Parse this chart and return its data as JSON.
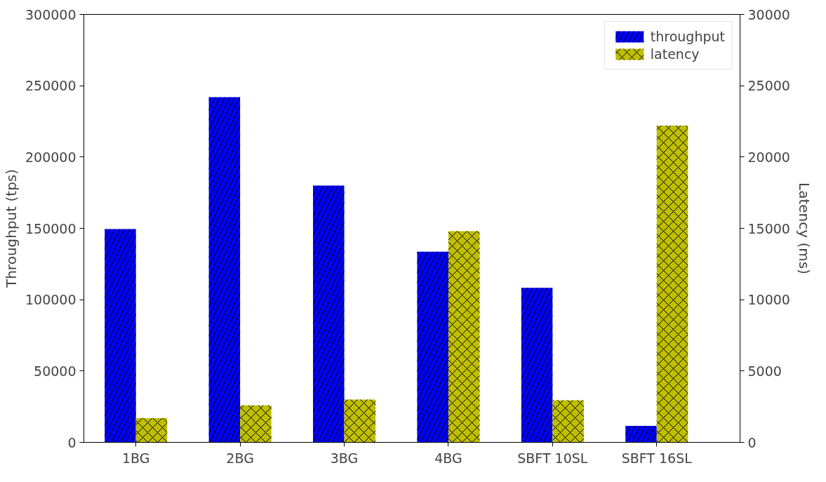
{
  "chart_data": {
    "type": "bar",
    "ylabel": "Throughput (tps)",
    "y2label": "Latency (ms)",
    "categories": [
      "1BG",
      "2BG",
      "3BG",
      "4BG",
      "SBFT 10SL",
      "SBFT 16SL"
    ],
    "series": [
      {
        "name": "throughput",
        "color": "#0000ff",
        "values": [
          149500,
          242000,
          180000,
          133700,
          108300,
          11500
        ]
      },
      {
        "name": "latency",
        "color": "#bfbf00",
        "axis": "y2",
        "values": [
          1700,
          2600,
          3000,
          14800,
          2950,
          22200
        ]
      }
    ],
    "ylim": [
      0,
      300000
    ],
    "yticks": [
      0,
      50000,
      100000,
      150000,
      200000,
      250000,
      300000
    ],
    "y2lim": [
      0,
      30000
    ],
    "y2ticks": [
      0,
      5000,
      10000,
      15000,
      20000,
      25000,
      30000
    ],
    "legend": "top right",
    "grid": false
  }
}
